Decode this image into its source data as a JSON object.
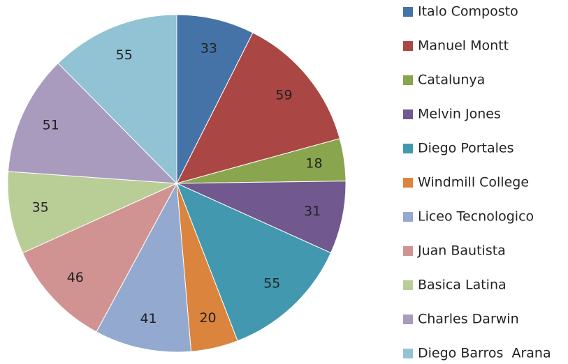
{
  "chart_data": {
    "type": "pie",
    "categories": [
      "Italo Composto",
      "Manuel Montt",
      "Catalunya",
      "Melvin Jones",
      "Diego Portales",
      "Windmill College",
      "Liceo Tecnologico",
      "Juan Bautista",
      "Basica Latina",
      "Charles Darwin",
      "Diego Barros  Arana"
    ],
    "values": [
      33,
      59,
      18,
      31,
      55,
      20,
      41,
      46,
      35,
      51,
      55
    ],
    "colors": [
      "#4572a7",
      "#aa4643",
      "#89a54e",
      "#71588f",
      "#4198af",
      "#db843d",
      "#93a9cf",
      "#d19392",
      "#b9cd96",
      "#a99bbd",
      "#92c3d4"
    ],
    "legend": "right"
  }
}
